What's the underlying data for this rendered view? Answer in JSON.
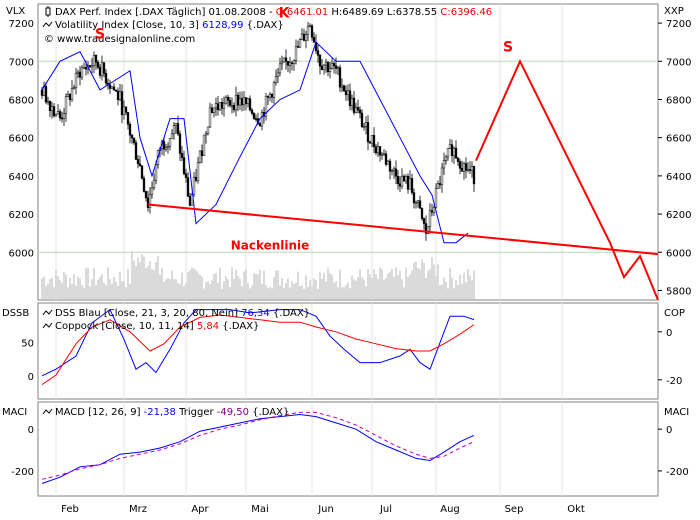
{
  "main_panel": {
    "left_axis_title": "VLX",
    "right_axis_title": "XXP",
    "legend": [
      {
        "icon": "candlestick-icon",
        "text": "DAX Perf. Index [.DAX Täglich] 01.08.2008 - ",
        "ohlc": [
          {
            "label": "O:",
            "value": "6461.01",
            "color": "#ff0000"
          },
          {
            "label": "H:",
            "value": "6489.69",
            "color": "#000000"
          },
          {
            "label": "L:",
            "value": "6378.55",
            "color": "#000000"
          },
          {
            "label": "C:",
            "value": "6396.46",
            "color": "#ff0000"
          }
        ]
      },
      {
        "icon": "line-icon",
        "text": "Volatility Index [Close, 10, 3] ",
        "value": "6128,99",
        "value_color": "#0000ff",
        "suffix": " {.DAX}"
      },
      {
        "icon": "copyright-icon",
        "text": "© www.tradesignalonline.com"
      }
    ],
    "left_ticks": [
      "7200",
      "7000",
      "6800",
      "6600",
      "6400",
      "6200",
      "6000"
    ],
    "right_ticks": [
      "7200",
      "7000",
      "6800",
      "6600",
      "6400",
      "6200",
      "6000",
      "5800"
    ],
    "annotations": [
      {
        "text": "S",
        "color": "#ff0000",
        "role": "left-shoulder"
      },
      {
        "text": "K",
        "color": "#ff0000",
        "role": "head"
      },
      {
        "text": "S",
        "color": "#ff0000",
        "role": "right-shoulder-projection"
      },
      {
        "text": "Nackenlinie",
        "color": "#ff0000",
        "role": "neckline-label"
      }
    ]
  },
  "dss_panel": {
    "left_axis_title": "DSSB",
    "right_axis_title": "COP",
    "legend": [
      {
        "text": "DSS Blau [Close, 21, 3, 20, 80, Nein] ",
        "value": "76,34",
        "value_color": "#0000ff",
        "suffix": " {.DAX}"
      },
      {
        "text": "Coppock [Close, 10, 11, 14] ",
        "value": "5,84",
        "value_color": "#ff0000",
        "suffix": " {.DAX}"
      }
    ],
    "left_ticks": [
      "50",
      "0"
    ],
    "right_ticks": [
      "0",
      "-20"
    ]
  },
  "macd_panel": {
    "left_axis_title": "MACI",
    "right_axis_title": "MACI",
    "legend": [
      {
        "text": "MACD [12, 26, 9] ",
        "value": "-21,38",
        "value_color": "#0000ff",
        "mid": " Trigger ",
        "value2": "-49,50",
        "value2_color": "#800080",
        "suffix": " {.DAX}"
      }
    ],
    "left_ticks": [
      "0",
      "-200"
    ],
    "right_ticks": [
      "0",
      "-200"
    ]
  },
  "x_axis_months": [
    "Feb",
    "Mrz",
    "Apr",
    "Mai",
    "Jun",
    "Jul",
    "Aug",
    "Sep",
    "Okt"
  ],
  "chart_data": {
    "type": "line",
    "title": "DAX Perf. Index [.DAX Täglich] 01.08.2008",
    "pattern": "head-and-shoulders",
    "price_ylim": [
      5750,
      7300
    ],
    "price_path": [
      [
        1,
        6850
      ],
      [
        10,
        6700
      ],
      [
        20,
        6950
      ],
      [
        28,
        7000
      ],
      [
        40,
        6800
      ],
      [
        50,
        6450
      ],
      [
        54,
        6250
      ],
      [
        60,
        6550
      ],
      [
        68,
        6650
      ],
      [
        75,
        6250
      ],
      [
        85,
        6750
      ],
      [
        100,
        6800
      ],
      [
        110,
        6700
      ],
      [
        120,
        6950
      ],
      [
        128,
        7050
      ],
      [
        135,
        7200
      ],
      [
        140,
        7000
      ],
      [
        148,
        6950
      ],
      [
        155,
        6800
      ],
      [
        165,
        6600
      ],
      [
        172,
        6500
      ],
      [
        178,
        6400
      ],
      [
        185,
        6350
      ],
      [
        190,
        6200
      ],
      [
        193,
        6100
      ],
      [
        198,
        6300
      ],
      [
        202,
        6450
      ],
      [
        206,
        6550
      ],
      [
        212,
        6450
      ],
      [
        217,
        6400
      ]
    ],
    "volatility_path": [
      [
        1,
        6850
      ],
      [
        10,
        7000
      ],
      [
        20,
        7050
      ],
      [
        30,
        6850
      ],
      [
        45,
        6950
      ],
      [
        50,
        6600
      ],
      [
        56,
        6400
      ],
      [
        65,
        6700
      ],
      [
        72,
        6700
      ],
      [
        78,
        6150
      ],
      [
        88,
        6250
      ],
      [
        100,
        6500
      ],
      [
        110,
        6700
      ],
      [
        120,
        6800
      ],
      [
        130,
        6850
      ],
      [
        138,
        7100
      ],
      [
        148,
        7000
      ],
      [
        160,
        7000
      ],
      [
        170,
        6800
      ],
      [
        180,
        6600
      ],
      [
        190,
        6400
      ],
      [
        196,
        6300
      ],
      [
        202,
        6050
      ],
      [
        208,
        6050
      ],
      [
        214,
        6100
      ]
    ],
    "neckline": {
      "start": [
        54,
        6250
      ],
      "end": [
        309,
        5990
      ]
    },
    "projection_path": [
      [
        218,
        6480
      ],
      [
        240,
        7000
      ],
      [
        285,
        6050
      ],
      [
        292,
        5870
      ],
      [
        300,
        5980
      ],
      [
        309,
        5750
      ]
    ],
    "dss_ylim": [
      -35,
      110
    ],
    "dss_path": [
      [
        1,
        0
      ],
      [
        8,
        10
      ],
      [
        18,
        30
      ],
      [
        26,
        80
      ],
      [
        35,
        100
      ],
      [
        42,
        55
      ],
      [
        48,
        10
      ],
      [
        53,
        20
      ],
      [
        58,
        5
      ],
      [
        65,
        40
      ],
      [
        72,
        80
      ],
      [
        78,
        100
      ],
      [
        85,
        100
      ],
      [
        95,
        100
      ],
      [
        105,
        95
      ],
      [
        120,
        100
      ],
      [
        130,
        100
      ],
      [
        138,
        90
      ],
      [
        145,
        60
      ],
      [
        152,
        40
      ],
      [
        160,
        20
      ],
      [
        170,
        20
      ],
      [
        180,
        30
      ],
      [
        185,
        40
      ],
      [
        190,
        20
      ],
      [
        195,
        10
      ],
      [
        200,
        50
      ],
      [
        205,
        90
      ],
      [
        212,
        90
      ],
      [
        217,
        85
      ]
    ],
    "coppock_ylim": [
      -28,
      12
    ],
    "coppock_path": [
      [
        1,
        -22
      ],
      [
        8,
        -18
      ],
      [
        18,
        -5
      ],
      [
        26,
        2
      ],
      [
        35,
        5
      ],
      [
        45,
        0
      ],
      [
        55,
        -8
      ],
      [
        62,
        -5
      ],
      [
        70,
        2
      ],
      [
        80,
        6
      ],
      [
        90,
        7
      ],
      [
        100,
        6
      ],
      [
        110,
        5
      ],
      [
        120,
        4
      ],
      [
        130,
        4
      ],
      [
        138,
        2
      ],
      [
        148,
        0
      ],
      [
        158,
        -3
      ],
      [
        168,
        -5
      ],
      [
        178,
        -7
      ],
      [
        188,
        -8
      ],
      [
        195,
        -8
      ],
      [
        202,
        -5
      ],
      [
        210,
        -1
      ],
      [
        217,
        3
      ]
    ],
    "macd_ylim": [
      -320,
      130
    ],
    "macd_path": [
      [
        1,
        -260
      ],
      [
        10,
        -230
      ],
      [
        20,
        -180
      ],
      [
        30,
        -170
      ],
      [
        40,
        -120
      ],
      [
        50,
        -110
      ],
      [
        60,
        -90
      ],
      [
        70,
        -60
      ],
      [
        80,
        -10
      ],
      [
        90,
        10
      ],
      [
        100,
        30
      ],
      [
        110,
        50
      ],
      [
        120,
        60
      ],
      [
        130,
        70
      ],
      [
        138,
        60
      ],
      [
        148,
        30
      ],
      [
        158,
        0
      ],
      [
        168,
        -60
      ],
      [
        178,
        -100
      ],
      [
        188,
        -140
      ],
      [
        195,
        -150
      ],
      [
        202,
        -110
      ],
      [
        210,
        -60
      ],
      [
        217,
        -30
      ]
    ],
    "trigger_path": [
      [
        1,
        -240
      ],
      [
        10,
        -220
      ],
      [
        20,
        -190
      ],
      [
        30,
        -170
      ],
      [
        40,
        -140
      ],
      [
        50,
        -120
      ],
      [
        60,
        -100
      ],
      [
        70,
        -70
      ],
      [
        80,
        -30
      ],
      [
        90,
        0
      ],
      [
        100,
        20
      ],
      [
        110,
        45
      ],
      [
        120,
        65
      ],
      [
        130,
        80
      ],
      [
        138,
        80
      ],
      [
        148,
        55
      ],
      [
        158,
        20
      ],
      [
        168,
        -30
      ],
      [
        178,
        -80
      ],
      [
        188,
        -120
      ],
      [
        195,
        -140
      ],
      [
        202,
        -130
      ],
      [
        210,
        -90
      ],
      [
        217,
        -60
      ]
    ]
  }
}
